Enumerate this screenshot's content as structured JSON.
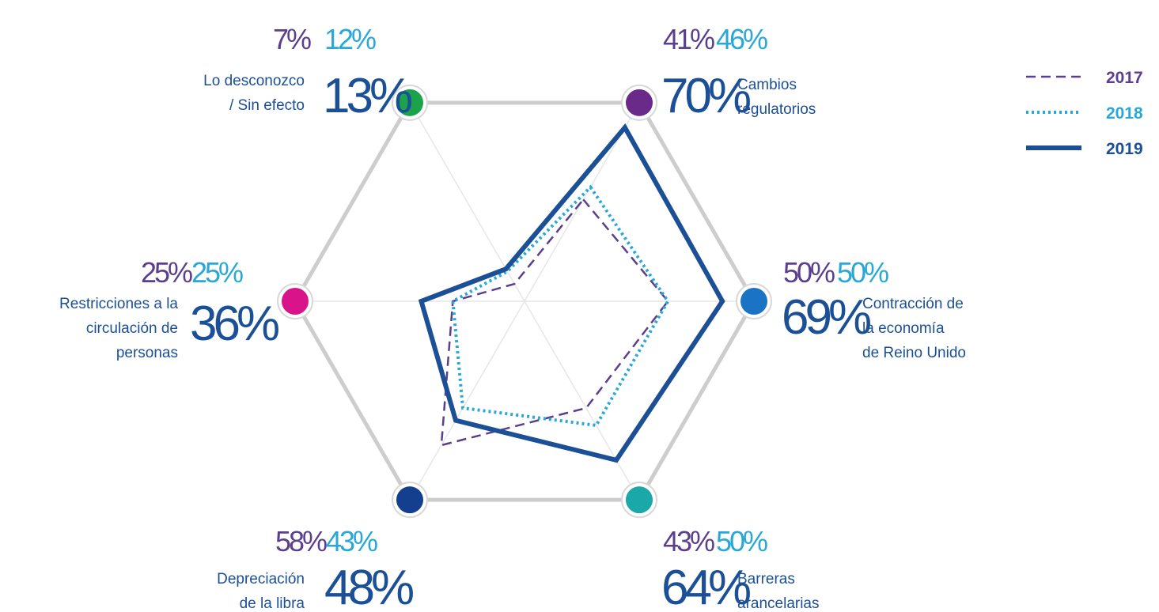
{
  "chart_data": {
    "type": "radar",
    "categories": [
      [
        "Cambios",
        "regulatorios"
      ],
      [
        "Contracción de",
        "la economía",
        "de Reino Unido"
      ],
      [
        "Barreras",
        "arancelarias"
      ],
      [
        "Depreciación",
        "de la libra"
      ],
      [
        "Restricciones a la",
        "circulación de",
        "personas"
      ],
      [
        "Lo desconozco",
        "/ Sin efecto"
      ]
    ],
    "category_colors": [
      "#6a2a8a",
      "#1a73c4",
      "#1aa8a8",
      "#143f8f",
      "#d9138a",
      "#1aa34a"
    ],
    "ylim": [
      0,
      80
    ],
    "series": [
      {
        "name": "2017",
        "color": "#5b3f8f",
        "style": "dashed",
        "values": [
          41,
          50,
          43,
          58,
          25,
          7
        ],
        "value_labels": [
          "41%",
          "50%",
          "43%",
          "58%",
          "25%",
          "7%"
        ]
      },
      {
        "name": "2018",
        "color": "#29a8d8",
        "style": "dotted",
        "values": [
          46,
          50,
          50,
          43,
          25,
          12
        ],
        "value_labels": [
          "46%",
          "50%",
          "50%",
          "43%",
          "25%",
          "12%"
        ]
      },
      {
        "name": "2019",
        "color": "#1b4f96",
        "style": "solid",
        "values": [
          70,
          69,
          64,
          48,
          36,
          13
        ],
        "value_labels": [
          "70%",
          "69%",
          "64%",
          "48%",
          "36%",
          "13%"
        ]
      }
    ]
  }
}
